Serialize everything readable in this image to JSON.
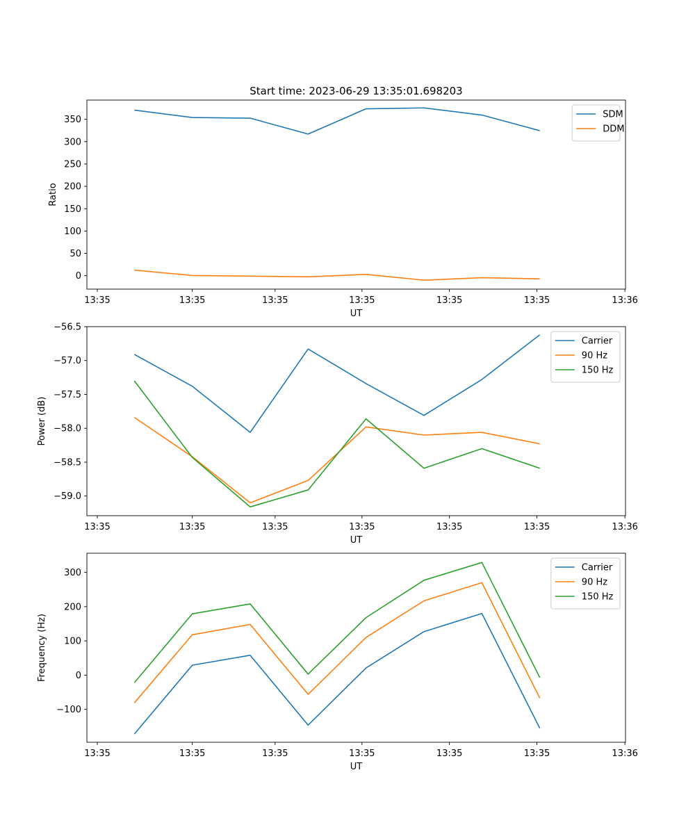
{
  "figure": {
    "title": "Start time: 2023-06-29 13:35:01.698203"
  },
  "colors": {
    "blue": "#1f77b4",
    "orange": "#ff7f0e",
    "green": "#2ca02c"
  },
  "chart_data": [
    {
      "type": "line",
      "title": "Start time: 2023-06-29 13:35:01.698203",
      "xlabel": "UT",
      "ylabel": "Ratio",
      "x_sample": [
        1,
        2,
        3,
        4,
        5,
        6,
        7,
        8
      ],
      "xlim": [
        0.18,
        9.48
      ],
      "xticks": [
        0.36,
        2.0,
        3.43,
        4.93,
        6.44,
        7.95,
        9.47
      ],
      "xtick_labels": [
        "13:35",
        "13:35",
        "13:35",
        "13:35",
        "13:35",
        "13:35",
        "13:36"
      ],
      "ylim": [
        -30,
        393
      ],
      "yticks": [
        0,
        50,
        100,
        150,
        200,
        250,
        300,
        350
      ],
      "ytick_labels": [
        "0",
        "50",
        "100",
        "150",
        "200",
        "250",
        "300",
        "350"
      ],
      "legend_position": "top-right",
      "series": [
        {
          "name": "SDM",
          "color": "#1f77b4",
          "values": [
            370.5,
            354.0,
            352.5,
            317.0,
            373.5,
            375.5,
            359.5,
            324.5
          ]
        },
        {
          "name": "DDM",
          "color": "#ff7f0e",
          "values": [
            12.5,
            0.5,
            -1.0,
            -2.5,
            3.0,
            -10.0,
            -4.5,
            -7.0
          ]
        }
      ]
    },
    {
      "type": "line",
      "xlabel": "UT",
      "ylabel": "Power (dB)",
      "x_sample": [
        1,
        2,
        3,
        4,
        5,
        6,
        7,
        8
      ],
      "xlim": [
        0.18,
        9.48
      ],
      "xticks": [
        0.36,
        2.0,
        3.43,
        4.93,
        6.44,
        7.95,
        9.47
      ],
      "xtick_labels": [
        "13:35",
        "13:35",
        "13:35",
        "13:35",
        "13:35",
        "13:35",
        "13:36"
      ],
      "ylim": [
        -59.29,
        -56.5
      ],
      "yticks": [
        -59.0,
        -58.5,
        -58.0,
        -57.5,
        -57.0,
        -56.5
      ],
      "ytick_labels": [
        "−59.0",
        "−58.5",
        "−58.0",
        "−57.5",
        "−57.0",
        "−56.5"
      ],
      "legend_position": "top-right",
      "series": [
        {
          "name": "Carrier",
          "color": "#1f77b4",
          "values": [
            -56.91,
            -57.38,
            -58.06,
            -56.83,
            -57.34,
            -57.81,
            -57.28,
            -56.62
          ]
        },
        {
          "name": "90 Hz",
          "color": "#ff7f0e",
          "values": [
            -57.84,
            -58.42,
            -59.1,
            -58.77,
            -57.98,
            -58.1,
            -58.06,
            -58.23
          ]
        },
        {
          "name": "150 Hz",
          "color": "#2ca02c",
          "values": [
            -57.3,
            -58.43,
            -59.16,
            -58.91,
            -57.86,
            -58.59,
            -58.3,
            -58.59
          ]
        }
      ]
    },
    {
      "type": "line",
      "xlabel": "UT",
      "ylabel": "Frequency (Hz)",
      "x_sample": [
        1,
        2,
        3,
        4,
        5,
        6,
        7,
        8
      ],
      "xlim": [
        0.18,
        9.48
      ],
      "xticks": [
        0.36,
        2.0,
        3.43,
        4.93,
        6.44,
        7.95,
        9.47
      ],
      "xtick_labels": [
        "13:35",
        "13:35",
        "13:35",
        "13:35",
        "13:35",
        "13:35",
        "13:36"
      ],
      "ylim": [
        -196,
        356
      ],
      "yticks": [
        -100,
        0,
        100,
        200,
        300
      ],
      "ytick_labels": [
        "−100",
        "0",
        "100",
        "200",
        "300"
      ],
      "legend_position": "top-right",
      "series": [
        {
          "name": "Carrier",
          "color": "#1f77b4",
          "values": [
            -172,
            29,
            58,
            -146,
            21,
            127,
            180,
            -155
          ]
        },
        {
          "name": "90 Hz",
          "color": "#ff7f0e",
          "values": [
            -81,
            118,
            148,
            -56,
            110,
            217,
            270,
            -67
          ]
        },
        {
          "name": "150 Hz",
          "color": "#2ca02c",
          "values": [
            -22,
            179,
            208,
            3,
            168,
            277,
            329,
            -7
          ]
        }
      ]
    }
  ]
}
